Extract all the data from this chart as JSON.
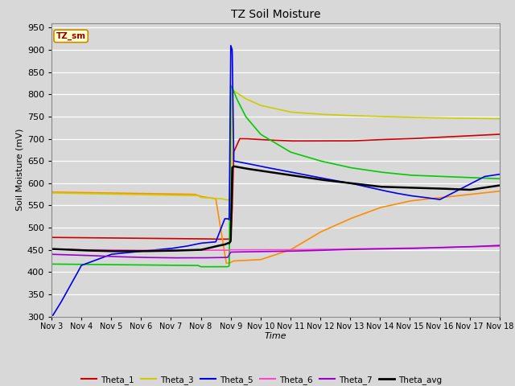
{
  "title": "TZ Soil Moisture",
  "xlabel": "Time",
  "ylabel": "Soil Moisture (mV)",
  "ylim": [
    300,
    960
  ],
  "yticks": [
    300,
    350,
    400,
    450,
    500,
    550,
    600,
    650,
    700,
    750,
    800,
    850,
    900,
    950
  ],
  "background_color": "#d8d8d8",
  "plot_bg_color": "#d8d8d8",
  "watermark": "TZ_sm",
  "series": {
    "Theta_1": {
      "color": "#cc0000",
      "lw": 1.2
    },
    "Theta_2": {
      "color": "#ff8c00",
      "lw": 1.2
    },
    "Theta_3": {
      "color": "#cccc00",
      "lw": 1.2
    },
    "Theta_4": {
      "color": "#00cc00",
      "lw": 1.2
    },
    "Theta_5": {
      "color": "#0000ee",
      "lw": 1.2
    },
    "Theta_6": {
      "color": "#ff44cc",
      "lw": 1.2
    },
    "Theta_7": {
      "color": "#9900cc",
      "lw": 1.2
    },
    "Theta_avg": {
      "color": "#000000",
      "lw": 1.8
    }
  },
  "x_tick_labels": [
    "Nov 3",
    "Nov 4",
    "Nov 5",
    "Nov 6",
    "Nov 7",
    "Nov 8",
    "Nov 9",
    "Nov 10",
    "Nov 11",
    "Nov 12",
    "Nov 13",
    "Nov 14",
    "Nov 15",
    "Nov 16",
    "Nov 17",
    "Nov 18"
  ]
}
